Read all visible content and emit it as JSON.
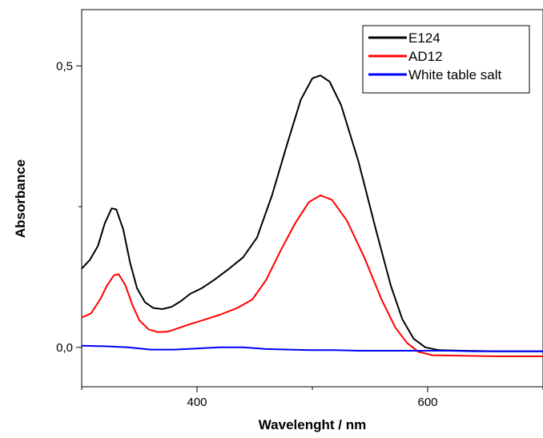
{
  "chart_data": {
    "type": "line",
    "title": "",
    "xlabel": "Wavelenght / nm",
    "ylabel": "Absorbance",
    "xlim": [
      300,
      700
    ],
    "ylim": [
      -0.07,
      0.6
    ],
    "x_ticks": [
      400,
      600
    ],
    "x_tick_labels": [
      "400",
      "600"
    ],
    "y_ticks": [
      0.0,
      0.5
    ],
    "y_tick_labels": [
      "0,0",
      "0,5"
    ],
    "grid": false,
    "legend_position": "top-right",
    "series": [
      {
        "name": "E124",
        "color": "#000000",
        "points": [
          [
            300,
            0.14
          ],
          [
            307,
            0.155
          ],
          [
            314,
            0.18
          ],
          [
            320,
            0.22
          ],
          [
            326,
            0.247
          ],
          [
            330,
            0.245
          ],
          [
            336,
            0.21
          ],
          [
            342,
            0.15
          ],
          [
            348,
            0.105
          ],
          [
            355,
            0.08
          ],
          [
            362,
            0.07
          ],
          [
            370,
            0.068
          ],
          [
            378,
            0.072
          ],
          [
            386,
            0.082
          ],
          [
            394,
            0.095
          ],
          [
            404,
            0.105
          ],
          [
            415,
            0.12
          ],
          [
            428,
            0.14
          ],
          [
            440,
            0.16
          ],
          [
            452,
            0.195
          ],
          [
            465,
            0.27
          ],
          [
            478,
            0.36
          ],
          [
            490,
            0.44
          ],
          [
            500,
            0.478
          ],
          [
            507,
            0.483
          ],
          [
            515,
            0.472
          ],
          [
            525,
            0.43
          ],
          [
            540,
            0.33
          ],
          [
            555,
            0.21
          ],
          [
            568,
            0.11
          ],
          [
            578,
            0.05
          ],
          [
            588,
            0.015
          ],
          [
            598,
            0.0
          ],
          [
            610,
            -0.005
          ],
          [
            630,
            -0.006
          ],
          [
            660,
            -0.007
          ],
          [
            700,
            -0.007
          ]
        ]
      },
      {
        "name": "AD12",
        "color": "#ff0000",
        "points": [
          [
            300,
            0.053
          ],
          [
            308,
            0.06
          ],
          [
            316,
            0.085
          ],
          [
            322,
            0.11
          ],
          [
            328,
            0.128
          ],
          [
            332,
            0.13
          ],
          [
            338,
            0.11
          ],
          [
            344,
            0.075
          ],
          [
            350,
            0.048
          ],
          [
            358,
            0.032
          ],
          [
            366,
            0.027
          ],
          [
            375,
            0.028
          ],
          [
            385,
            0.035
          ],
          [
            395,
            0.042
          ],
          [
            408,
            0.05
          ],
          [
            420,
            0.058
          ],
          [
            435,
            0.07
          ],
          [
            448,
            0.085
          ],
          [
            460,
            0.12
          ],
          [
            472,
            0.17
          ],
          [
            485,
            0.22
          ],
          [
            497,
            0.258
          ],
          [
            507,
            0.27
          ],
          [
            517,
            0.262
          ],
          [
            530,
            0.225
          ],
          [
            545,
            0.16
          ],
          [
            560,
            0.085
          ],
          [
            572,
            0.035
          ],
          [
            582,
            0.008
          ],
          [
            592,
            -0.008
          ],
          [
            604,
            -0.014
          ],
          [
            630,
            -0.015
          ],
          [
            660,
            -0.016
          ],
          [
            700,
            -0.016
          ]
        ]
      },
      {
        "name": "White table salt",
        "color": "#0000ff",
        "points": [
          [
            300,
            0.003
          ],
          [
            320,
            0.002
          ],
          [
            340,
            0.0
          ],
          [
            360,
            -0.004
          ],
          [
            380,
            -0.004
          ],
          [
            400,
            -0.002
          ],
          [
            420,
            0.0
          ],
          [
            440,
            0.0
          ],
          [
            460,
            -0.003
          ],
          [
            480,
            -0.004
          ],
          [
            500,
            -0.005
          ],
          [
            520,
            -0.005
          ],
          [
            540,
            -0.006
          ],
          [
            560,
            -0.006
          ],
          [
            580,
            -0.006
          ],
          [
            600,
            -0.006
          ],
          [
            620,
            -0.006
          ],
          [
            640,
            -0.007
          ],
          [
            660,
            -0.007
          ],
          [
            680,
            -0.007
          ],
          [
            700,
            -0.007
          ]
        ]
      }
    ]
  }
}
